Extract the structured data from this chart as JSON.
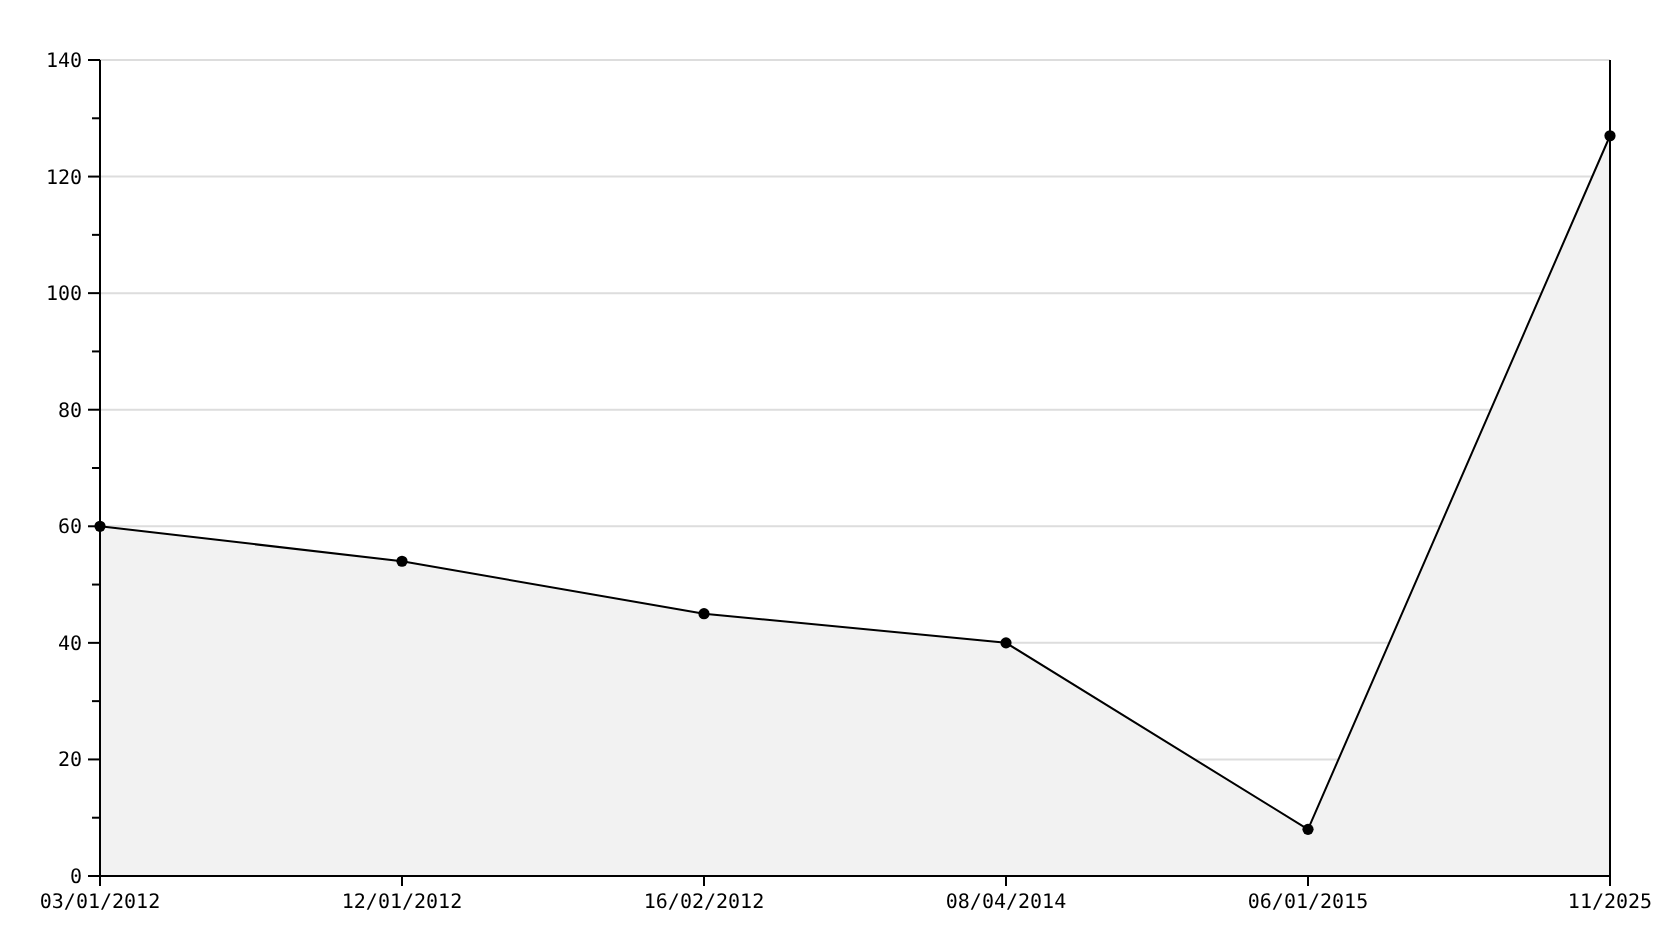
{
  "chart_data": {
    "type": "area",
    "categories": [
      "03/01/2012",
      "12/01/2012",
      "16/02/2012",
      "08/04/2014",
      "06/01/2015",
      "11/2025"
    ],
    "series": [
      {
        "color": "#f2f2f2",
        "values": [
          60,
          54,
          45,
          40,
          8,
          127
        ]
      }
    ],
    "ylim": [
      0,
      140
    ],
    "yticks": [
      0,
      {
        "value": 10,
        "label": null
      },
      20,
      {
        "value": 30,
        "label": null
      },
      40,
      {
        "value": 50,
        "label": null
      },
      60,
      {
        "value": 70,
        "label": null
      },
      80,
      {
        "value": 90,
        "label": null
      },
      100,
      {
        "value": 110,
        "label": null
      },
      120,
      {
        "value": 130,
        "label": null
      },
      140
    ],
    "grid": "y",
    "marker": "circle",
    "line_style": "solid"
  }
}
